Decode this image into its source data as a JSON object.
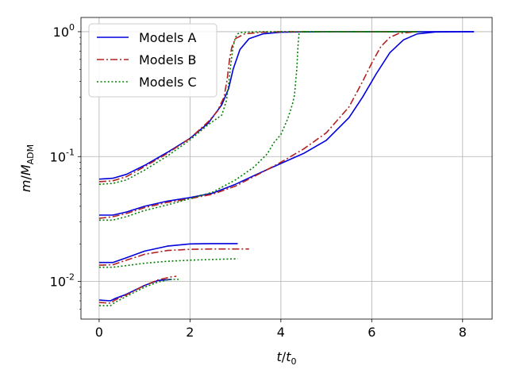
{
  "chart_data": {
    "type": "line",
    "title": "",
    "xlabel": "t/t0",
    "ylabel": "m/M_ADM",
    "xlim": [
      -0.4,
      8.65
    ],
    "ylim": [
      0.005,
      1.3
    ],
    "yscale": "log",
    "grid": true,
    "legend_position": "top-left",
    "x_ticks": [
      0,
      2,
      4,
      6,
      8
    ],
    "y_ticks": [
      0.01,
      0.1,
      1.0
    ],
    "y_tick_labels": [
      "10",
      "10",
      "10"
    ],
    "y_tick_exponents": [
      "-2",
      "-1",
      "0"
    ],
    "legend": [
      {
        "label": "Models A",
        "color": "#0000dd",
        "dash": "solid"
      },
      {
        "label": "Models B",
        "color": "#b22222",
        "dash": "dashdot"
      },
      {
        "label": "Models C",
        "color": "#008000",
        "dash": "dotted"
      }
    ],
    "series": [
      {
        "model": "A",
        "color": "#0000dd",
        "dash": "solid",
        "x": [
          0,
          0.3,
          0.6,
          1.0,
          1.5,
          2.0,
          2.4,
          2.7,
          2.85,
          2.95,
          3.1,
          3.3,
          3.6,
          4.0,
          5.0,
          6.0,
          7.0,
          8.25
        ],
        "y": [
          0.066,
          0.067,
          0.072,
          0.085,
          0.108,
          0.14,
          0.185,
          0.26,
          0.35,
          0.5,
          0.72,
          0.88,
          0.96,
          0.99,
          1.0,
          1.0,
          1.0,
          1.0
        ]
      },
      {
        "model": "A",
        "color": "#0000dd",
        "dash": "solid",
        "x": [
          0,
          0.3,
          0.6,
          1.0,
          1.5,
          2.0,
          2.5,
          3.0,
          3.5,
          4.0,
          4.5,
          5.0,
          5.5,
          5.8,
          6.1,
          6.4,
          6.7,
          7.0,
          7.4,
          8.0,
          8.25
        ],
        "y": [
          0.034,
          0.034,
          0.036,
          0.04,
          0.044,
          0.047,
          0.051,
          0.06,
          0.073,
          0.088,
          0.106,
          0.135,
          0.205,
          0.3,
          0.46,
          0.68,
          0.86,
          0.96,
          0.995,
          1.0,
          1.0
        ]
      },
      {
        "model": "A",
        "color": "#0000dd",
        "dash": "solid",
        "x": [
          0,
          0.3,
          0.6,
          1.0,
          1.5,
          2.0,
          2.5,
          3.05
        ],
        "y": [
          0.0142,
          0.0142,
          0.0155,
          0.0175,
          0.0192,
          0.02,
          0.0201,
          0.0201
        ]
      },
      {
        "model": "A",
        "color": "#0000dd",
        "dash": "solid",
        "x": [
          0,
          0.25,
          0.35,
          0.6,
          1.0,
          1.3,
          1.6
        ],
        "y": [
          0.0071,
          0.007,
          0.0073,
          0.0079,
          0.0093,
          0.0102,
          0.0104
        ]
      },
      {
        "model": "B",
        "color": "#b22222",
        "dash": "dashdot",
        "x": [
          0,
          0.3,
          0.6,
          1.0,
          1.5,
          2.0,
          2.4,
          2.6,
          2.75,
          2.82,
          2.87,
          2.92,
          3.0,
          3.2,
          3.6,
          4.0,
          5.0,
          6.0,
          7.0
        ],
        "y": [
          0.063,
          0.064,
          0.069,
          0.083,
          0.106,
          0.14,
          0.19,
          0.23,
          0.3,
          0.42,
          0.6,
          0.75,
          0.88,
          0.96,
          0.99,
          1.0,
          1.0,
          1.0,
          1.0
        ]
      },
      {
        "model": "B",
        "color": "#b22222",
        "dash": "dashdot",
        "x": [
          0,
          0.3,
          0.6,
          1.0,
          1.5,
          2.0,
          2.5,
          3.0,
          3.5,
          4.0,
          4.5,
          5.0,
          5.5,
          5.8,
          6.0,
          6.2,
          6.4,
          6.6,
          7.0
        ],
        "y": [
          0.032,
          0.033,
          0.035,
          0.039,
          0.043,
          0.046,
          0.05,
          0.058,
          0.072,
          0.09,
          0.115,
          0.155,
          0.25,
          0.4,
          0.56,
          0.76,
          0.9,
          0.97,
          1.0
        ]
      },
      {
        "model": "B",
        "color": "#b22222",
        "dash": "dashdot",
        "x": [
          0,
          0.3,
          0.6,
          1.0,
          1.5,
          2.0,
          2.5,
          3.0,
          3.3
        ],
        "y": [
          0.0135,
          0.0136,
          0.0148,
          0.0165,
          0.0177,
          0.0181,
          0.0182,
          0.0182,
          0.0182
        ]
      },
      {
        "model": "B",
        "color": "#b22222",
        "dash": "dashdot",
        "x": [
          0,
          0.25,
          0.35,
          0.6,
          1.0,
          1.3,
          1.6,
          1.7
        ],
        "y": [
          0.0068,
          0.0067,
          0.0071,
          0.0078,
          0.0093,
          0.0103,
          0.0109,
          0.011
        ]
      },
      {
        "model": "C",
        "color": "#008000",
        "dash": "dotted",
        "x": [
          0,
          0.3,
          0.6,
          1.0,
          1.5,
          2.0,
          2.4,
          2.7,
          2.8,
          2.85,
          2.9,
          2.95,
          3.0,
          3.05,
          3.1,
          3.3,
          3.6,
          4.0,
          5.0,
          6.0,
          7.1
        ],
        "y": [
          0.06,
          0.061,
          0.065,
          0.078,
          0.101,
          0.136,
          0.18,
          0.215,
          0.28,
          0.38,
          0.56,
          0.76,
          0.9,
          0.96,
          0.985,
          0.995,
          1.0,
          1.0,
          1.0,
          1.0,
          1.0
        ]
      },
      {
        "model": "C",
        "color": "#008000",
        "dash": "dotted",
        "x": [
          0,
          0.3,
          0.6,
          1.0,
          1.5,
          2.0,
          2.5,
          3.0,
          3.4,
          3.7,
          3.85,
          4.0,
          4.15,
          4.25,
          4.3,
          4.35,
          4.38,
          4.4,
          4.45,
          5.0,
          6.0,
          7.0
        ],
        "y": [
          0.031,
          0.031,
          0.033,
          0.037,
          0.041,
          0.046,
          0.052,
          0.065,
          0.082,
          0.105,
          0.13,
          0.15,
          0.2,
          0.26,
          0.31,
          0.5,
          0.8,
          0.96,
          1.0,
          1.0,
          1.0,
          1.0
        ]
      },
      {
        "model": "C",
        "color": "#008000",
        "dash": "dotted",
        "x": [
          0,
          0.3,
          0.6,
          1.0,
          1.5,
          2.0,
          2.5,
          3.05
        ],
        "y": [
          0.013,
          0.013,
          0.0134,
          0.014,
          0.0145,
          0.0148,
          0.015,
          0.0152
        ]
      },
      {
        "model": "C",
        "color": "#008000",
        "dash": "dotted",
        "x": [
          0,
          0.25,
          0.35,
          0.6,
          1.0,
          1.3,
          1.55,
          1.75
        ],
        "y": [
          0.0064,
          0.0064,
          0.0068,
          0.0076,
          0.009,
          0.0099,
          0.0104,
          0.0104
        ]
      }
    ]
  }
}
